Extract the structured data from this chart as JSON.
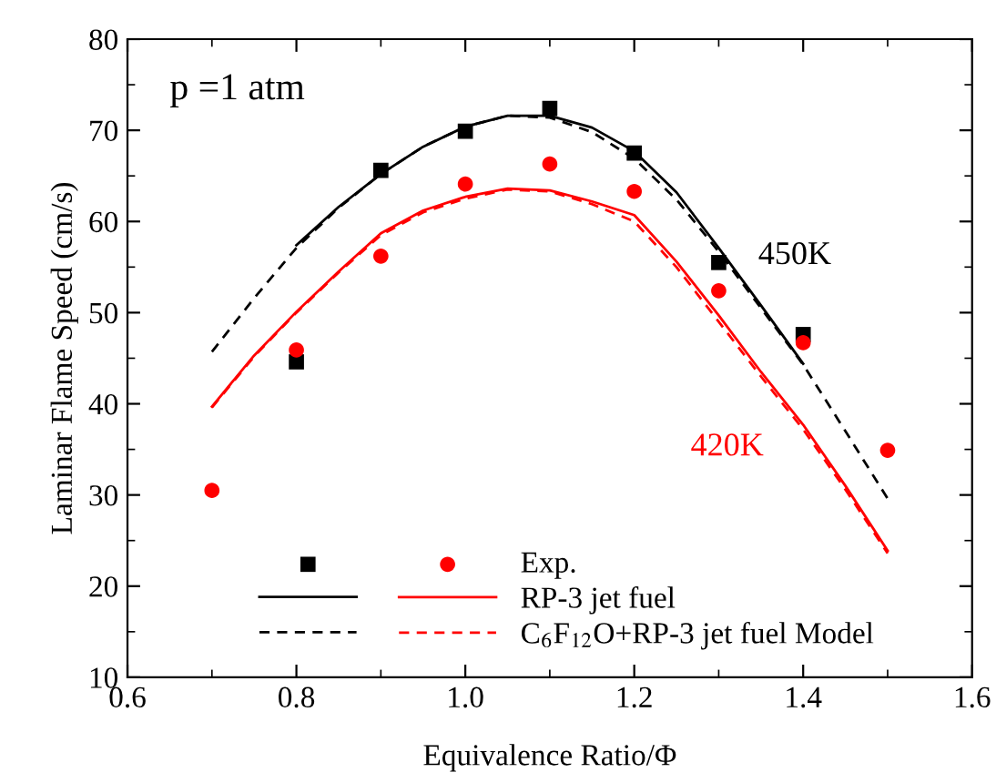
{
  "chart_data": {
    "type": "line",
    "xlabel": "Equivalence Ratio/Φ",
    "ylabel": "Laminar Flame Speed (cm/s)",
    "xlim": [
      0.6,
      1.6
    ],
    "xticks": [
      {
        "value": 0.6,
        "label": "0.6"
      },
      {
        "value": 0.8,
        "label": "0.8"
      },
      {
        "value": 1.0,
        "label": "1.0"
      },
      {
        "value": 1.2,
        "label": "1.2"
      },
      {
        "value": 1.4,
        "label": "1.4"
      },
      {
        "value": 1.6,
        "label": "1.6"
      }
    ],
    "ylim": [
      10,
      80
    ],
    "yticks": [
      10,
      20,
      30,
      40,
      50,
      60,
      70,
      80
    ],
    "grid": false,
    "legend": "bottom",
    "annotations": [
      "p =1 atm",
      "450K",
      "420K"
    ],
    "series": [
      {
        "type": "scatter",
        "color": "#000000",
        "marker": "square",
        "x": [
          0.8,
          0.9,
          1.0,
          1.1,
          1.2,
          1.3,
          1.4
        ],
        "values": [
          44.6,
          65.6,
          69.9,
          72.4,
          67.5,
          55.5,
          47.6
        ]
      },
      {
        "type": "scatter",
        "name": "Exp.",
        "color": "#ff0000",
        "marker": "circle",
        "x": [
          0.7,
          0.8,
          0.9,
          1.0,
          1.1,
          1.2,
          1.3,
          1.4,
          1.5
        ],
        "values": [
          30.5,
          45.9,
          56.2,
          64.1,
          66.3,
          63.3,
          52.4,
          46.7,
          34.9
        ]
      },
      {
        "color": "#000000",
        "line_style": "solid",
        "x": [
          0.8,
          0.85,
          0.9,
          0.95,
          1.0,
          1.05,
          1.1,
          1.15,
          1.2,
          1.25,
          1.3,
          1.35,
          1.4
        ],
        "values": [
          57.4,
          61.6,
          65.2,
          68.2,
          70.4,
          71.6,
          71.6,
          70.3,
          67.7,
          63.2,
          57.1,
          50.8,
          44.4
        ]
      },
      {
        "name": "RP-3 jet fuel",
        "color": "#ff0000",
        "line_style": "solid",
        "x": [
          0.7,
          0.75,
          0.8,
          0.85,
          0.9,
          0.95,
          1.0,
          1.05,
          1.1,
          1.15,
          1.2,
          1.25,
          1.3,
          1.35,
          1.4,
          1.45,
          1.5
        ],
        "values": [
          39.7,
          45.3,
          50.1,
          54.5,
          58.7,
          61.2,
          62.7,
          63.6,
          63.4,
          62.2,
          60.7,
          55.6,
          49.7,
          43.5,
          37.7,
          31.0,
          23.9
        ]
      },
      {
        "color": "#000000",
        "line_style": "dashed",
        "x": [
          0.7,
          0.75,
          0.8,
          0.85,
          0.9,
          0.95,
          1.0,
          1.05,
          1.1,
          1.15,
          1.2,
          1.25,
          1.3,
          1.35,
          1.4,
          1.45,
          1.5
        ],
        "values": [
          45.7,
          51.6,
          57.1,
          61.5,
          65.2,
          68.2,
          70.4,
          71.6,
          71.4,
          69.8,
          66.9,
          62.4,
          56.7,
          50.5,
          44.3,
          37.0,
          29.6
        ]
      },
      {
        "name": "C$_{6}$F$_{12}$O+RP-3 jet fuel Model",
        "color": "#ff0000",
        "line_style": "dashed",
        "x": [
          0.7,
          0.75,
          0.8,
          0.85,
          0.9,
          0.95,
          1.0,
          1.05,
          1.1,
          1.15,
          1.2,
          1.25,
          1.3,
          1.35,
          1.4,
          1.45,
          1.5
        ],
        "values": [
          39.6,
          45.2,
          50.0,
          54.4,
          58.5,
          61.0,
          62.5,
          63.5,
          63.3,
          61.9,
          60.0,
          55.0,
          49.0,
          43.0,
          37.2,
          30.6,
          23.6
        ]
      }
    ]
  }
}
